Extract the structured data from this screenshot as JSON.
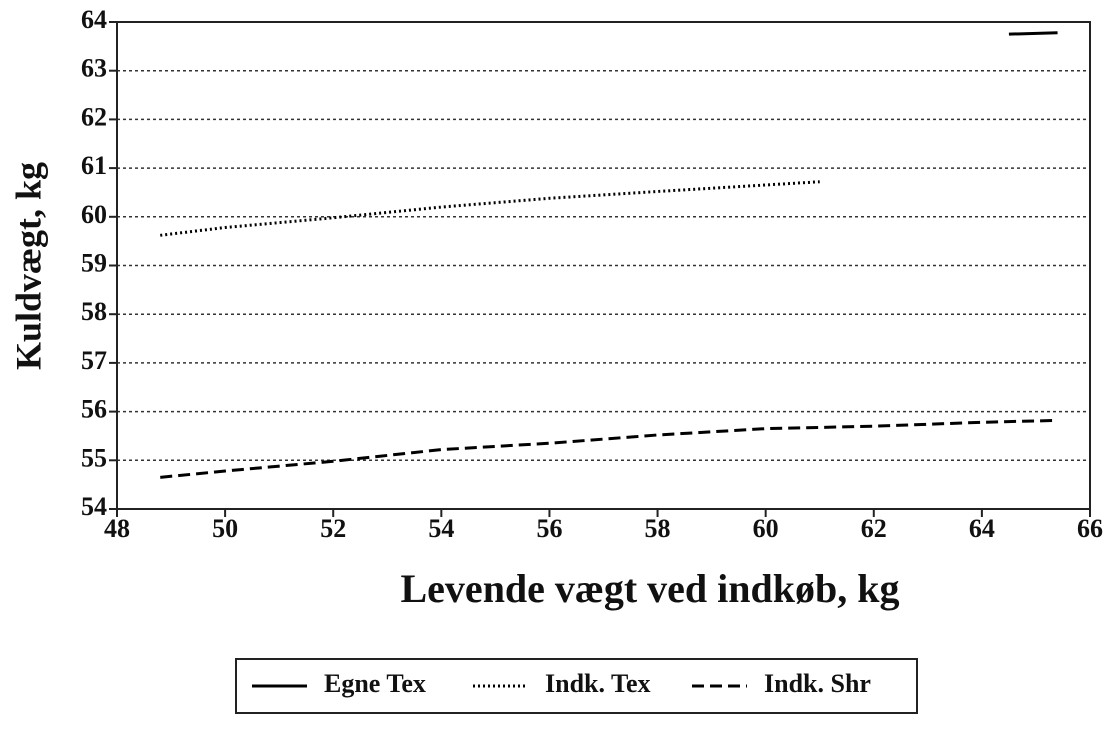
{
  "chart_data": {
    "type": "line",
    "xlabel": "Levende vægt ved indkøb, kg",
    "ylabel": "Kuldvægt, kg",
    "xlim": [
      48,
      66
    ],
    "xticks": [
      48,
      50,
      52,
      54,
      56,
      58,
      60,
      62,
      64,
      66
    ],
    "ylim": [
      54,
      64
    ],
    "yticks": [
      54,
      55,
      56,
      57,
      58,
      59,
      60,
      61,
      62,
      63,
      64
    ],
    "grid": true,
    "legend": "bottom",
    "series": [
      {
        "name": "Egne Tex",
        "color": "#000000",
        "style": "solid",
        "x": [
          64.5,
          65.4
        ],
        "values": [
          63.75,
          63.78
        ]
      },
      {
        "name": "Indk. Tex",
        "color": "#000000",
        "style": "dotted",
        "x": [
          48.8,
          50,
          52,
          54,
          56,
          58,
          61
        ],
        "values": [
          59.62,
          59.78,
          59.98,
          60.2,
          60.38,
          60.52,
          60.72
        ]
      },
      {
        "name": "Indk. Shr",
        "color": "#000000",
        "style": "dashed",
        "x": [
          48.8,
          50,
          52,
          54,
          56,
          58,
          60,
          62,
          64,
          65.4
        ],
        "values": [
          54.65,
          54.78,
          54.98,
          55.22,
          55.35,
          55.52,
          55.65,
          55.7,
          55.78,
          55.82
        ]
      }
    ]
  }
}
